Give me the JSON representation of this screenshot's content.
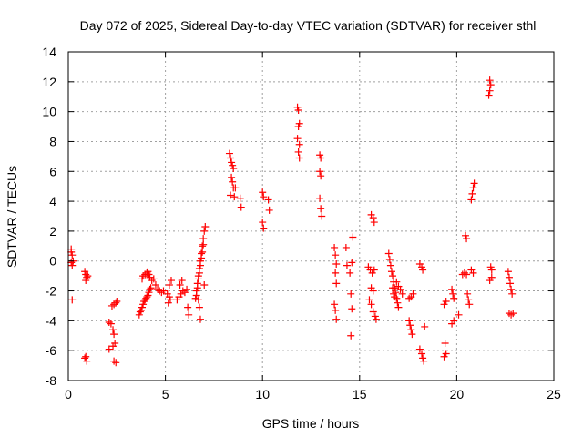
{
  "chart_data": {
    "type": "scatter",
    "title": "Day 072 of 2025, Sidereal Day-to-day VTEC variation (SDTVAR) for receiver sthl",
    "xlabel": "GPS time / hours",
    "ylabel": "SDTVAR / TECUs",
    "xlim": [
      0,
      25
    ],
    "ylim": [
      -8,
      14
    ],
    "x_ticks": [
      "0",
      "5",
      "10",
      "15",
      "20",
      "25"
    ],
    "y_ticks": [
      "-8",
      "-6",
      "-4",
      "-2",
      "0",
      "2",
      "4",
      "6",
      "8",
      "10",
      "12",
      "14"
    ],
    "grid": true,
    "marker": "plus",
    "marker_color": "#ff0000",
    "series": [
      {
        "name": "SDTVAR",
        "points": [
          [
            0.15,
            0.8
          ],
          [
            0.15,
            0.6
          ],
          [
            0.2,
            0.4
          ],
          [
            0.15,
            -0.1
          ],
          [
            0.2,
            -0.3
          ],
          [
            0.25,
            0.0
          ],
          [
            0.2,
            -2.6
          ],
          [
            0.85,
            -0.7
          ],
          [
            0.9,
            -0.9
          ],
          [
            0.95,
            -1.1
          ],
          [
            0.9,
            -1.3
          ],
          [
            1.0,
            -1.0
          ],
          [
            0.85,
            -6.5
          ],
          [
            0.95,
            -6.7
          ],
          [
            0.9,
            -6.4
          ],
          [
            2.1,
            -4.1
          ],
          [
            2.25,
            -3.0
          ],
          [
            2.2,
            -4.2
          ],
          [
            2.3,
            -4.6
          ],
          [
            2.35,
            -4.9
          ],
          [
            2.4,
            -5.5
          ],
          [
            2.3,
            -5.7
          ],
          [
            2.1,
            -5.9
          ],
          [
            2.45,
            -6.8
          ],
          [
            2.35,
            -6.7
          ],
          [
            2.45,
            -2.8
          ],
          [
            2.5,
            -2.7
          ],
          [
            2.35,
            -2.9
          ],
          [
            3.65,
            -3.6
          ],
          [
            3.7,
            -3.4
          ],
          [
            3.75,
            -3.3
          ],
          [
            3.8,
            -3.1
          ],
          [
            3.85,
            -2.9
          ],
          [
            3.9,
            -2.7
          ],
          [
            3.95,
            -2.6
          ],
          [
            4.0,
            -2.5
          ],
          [
            4.05,
            -2.4
          ],
          [
            4.1,
            -2.3
          ],
          [
            4.15,
            -2.1
          ],
          [
            4.2,
            -1.9
          ],
          [
            4.25,
            -1.8
          ],
          [
            3.8,
            -1.2
          ],
          [
            3.85,
            -1.0
          ],
          [
            3.95,
            -0.9
          ],
          [
            4.05,
            -0.8
          ],
          [
            4.1,
            -0.7
          ],
          [
            4.15,
            -0.9
          ],
          [
            4.2,
            -1.1
          ],
          [
            4.3,
            -1.3
          ],
          [
            4.4,
            -1.2
          ],
          [
            4.5,
            -1.6
          ],
          [
            4.6,
            -1.9
          ],
          [
            4.7,
            -2.0
          ],
          [
            4.8,
            -2.1
          ],
          [
            4.9,
            -2.0
          ],
          [
            5.1,
            -2.2
          ],
          [
            5.2,
            -2.4
          ],
          [
            5.25,
            -2.6
          ],
          [
            5.2,
            -1.6
          ],
          [
            5.3,
            -1.3
          ],
          [
            5.15,
            -2.8
          ],
          [
            5.6,
            -2.6
          ],
          [
            5.7,
            -2.4
          ],
          [
            5.8,
            -2.2
          ],
          [
            5.9,
            -2.0
          ],
          [
            5.75,
            -1.6
          ],
          [
            5.85,
            -1.3
          ],
          [
            6.0,
            -2.1
          ],
          [
            6.1,
            -1.9
          ],
          [
            6.2,
            -3.6
          ],
          [
            6.15,
            -3.1
          ],
          [
            6.55,
            -2.5
          ],
          [
            6.6,
            -2.0
          ],
          [
            6.65,
            -1.5
          ],
          [
            6.7,
            -1.0
          ],
          [
            6.75,
            -0.5
          ],
          [
            6.8,
            0.0
          ],
          [
            6.85,
            0.5
          ],
          [
            6.9,
            1.0
          ],
          [
            6.95,
            1.5
          ],
          [
            7.0,
            2.0
          ],
          [
            7.05,
            2.3
          ],
          [
            6.6,
            -2.3
          ],
          [
            6.65,
            -1.8
          ],
          [
            6.7,
            -1.2
          ],
          [
            6.75,
            -0.8
          ],
          [
            6.8,
            -0.3
          ],
          [
            6.85,
            0.2
          ],
          [
            6.9,
            0.6
          ],
          [
            6.95,
            1.1
          ],
          [
            7.0,
            -1.6
          ],
          [
            6.7,
            -2.6
          ],
          [
            6.75,
            -3.1
          ],
          [
            6.8,
            -3.9
          ],
          [
            8.3,
            7.2
          ],
          [
            8.35,
            6.9
          ],
          [
            8.4,
            6.6
          ],
          [
            8.45,
            6.4
          ],
          [
            8.5,
            6.2
          ],
          [
            8.4,
            5.6
          ],
          [
            8.45,
            5.3
          ],
          [
            8.5,
            4.9
          ],
          [
            8.35,
            4.4
          ],
          [
            8.55,
            4.3
          ],
          [
            8.6,
            4.9
          ],
          [
            8.85,
            4.2
          ],
          [
            8.9,
            3.6
          ],
          [
            10.0,
            4.6
          ],
          [
            10.05,
            4.3
          ],
          [
            10.0,
            2.6
          ],
          [
            10.05,
            2.2
          ],
          [
            10.3,
            4.1
          ],
          [
            10.35,
            3.4
          ],
          [
            11.8,
            10.3
          ],
          [
            11.85,
            10.1
          ],
          [
            11.9,
            9.2
          ],
          [
            11.85,
            9.0
          ],
          [
            11.8,
            8.2
          ],
          [
            11.9,
            7.8
          ],
          [
            11.85,
            7.3
          ],
          [
            11.9,
            6.9
          ],
          [
            12.95,
            7.1
          ],
          [
            13.0,
            6.9
          ],
          [
            12.95,
            6.0
          ],
          [
            13.0,
            5.7
          ],
          [
            12.95,
            4.2
          ],
          [
            13.0,
            3.5
          ],
          [
            13.05,
            3.0
          ],
          [
            13.7,
            0.9
          ],
          [
            13.75,
            0.4
          ],
          [
            13.8,
            -0.2
          ],
          [
            13.75,
            -0.8
          ],
          [
            13.8,
            -1.5
          ],
          [
            13.7,
            -2.9
          ],
          [
            13.75,
            -3.3
          ],
          [
            13.8,
            -3.9
          ],
          [
            14.3,
            0.9
          ],
          [
            14.35,
            -0.3
          ],
          [
            14.5,
            -0.8
          ],
          [
            14.6,
            -0.1
          ],
          [
            14.65,
            1.6
          ],
          [
            14.55,
            -2.2
          ],
          [
            14.6,
            -3.2
          ],
          [
            14.55,
            -5.0
          ],
          [
            15.45,
            -0.4
          ],
          [
            15.55,
            -0.6
          ],
          [
            15.65,
            -0.8
          ],
          [
            15.75,
            -0.6
          ],
          [
            15.5,
            -2.6
          ],
          [
            15.6,
            -2.9
          ],
          [
            15.7,
            -3.4
          ],
          [
            15.8,
            -3.7
          ],
          [
            15.85,
            -3.9
          ],
          [
            15.6,
            -1.8
          ],
          [
            15.7,
            -2.0
          ],
          [
            15.6,
            3.1
          ],
          [
            15.7,
            2.9
          ],
          [
            15.75,
            2.6
          ],
          [
            16.5,
            0.5
          ],
          [
            16.55,
            0.1
          ],
          [
            16.6,
            -0.3
          ],
          [
            16.65,
            -0.7
          ],
          [
            16.7,
            -1.0
          ],
          [
            16.75,
            -1.4
          ],
          [
            16.8,
            -1.8
          ],
          [
            16.85,
            -2.1
          ],
          [
            16.9,
            -2.5
          ],
          [
            16.95,
            -2.8
          ],
          [
            17.0,
            -3.1
          ],
          [
            16.7,
            -1.8
          ],
          [
            16.75,
            -2.2
          ],
          [
            16.8,
            -2.4
          ],
          [
            16.9,
            -1.4
          ],
          [
            17.0,
            -1.7
          ],
          [
            17.1,
            -1.9
          ],
          [
            17.2,
            -2.2
          ],
          [
            17.55,
            -4.0
          ],
          [
            17.6,
            -4.3
          ],
          [
            17.65,
            -4.6
          ],
          [
            17.7,
            -4.9
          ],
          [
            17.55,
            -2.5
          ],
          [
            17.65,
            -2.4
          ],
          [
            17.75,
            -2.2
          ],
          [
            18.1,
            -0.2
          ],
          [
            18.2,
            -0.4
          ],
          [
            18.25,
            -0.6
          ],
          [
            18.1,
            -5.9
          ],
          [
            18.2,
            -6.2
          ],
          [
            18.25,
            -6.5
          ],
          [
            18.3,
            -6.7
          ],
          [
            18.35,
            -4.4
          ],
          [
            19.4,
            -5.5
          ],
          [
            19.45,
            -6.2
          ],
          [
            19.35,
            -6.4
          ],
          [
            19.35,
            -2.9
          ],
          [
            19.45,
            -2.7
          ],
          [
            19.75,
            -1.9
          ],
          [
            19.8,
            -2.2
          ],
          [
            19.85,
            -2.5
          ],
          [
            19.75,
            -4.2
          ],
          [
            19.85,
            -4.0
          ],
          [
            20.1,
            -3.6
          ],
          [
            20.3,
            -0.9
          ],
          [
            20.4,
            -0.8
          ],
          [
            20.5,
            -0.9
          ],
          [
            20.55,
            -2.2
          ],
          [
            20.6,
            -2.6
          ],
          [
            20.65,
            -2.9
          ],
          [
            20.45,
            1.7
          ],
          [
            20.5,
            1.5
          ],
          [
            20.75,
            4.1
          ],
          [
            20.8,
            4.5
          ],
          [
            20.85,
            4.9
          ],
          [
            20.9,
            5.2
          ],
          [
            20.75,
            -0.6
          ],
          [
            20.85,
            -0.8
          ],
          [
            21.7,
            12.1
          ],
          [
            21.75,
            11.8
          ],
          [
            21.7,
            11.4
          ],
          [
            21.65,
            11.1
          ],
          [
            21.75,
            -0.4
          ],
          [
            21.8,
            -0.6
          ],
          [
            21.7,
            -1.3
          ],
          [
            21.8,
            -1.1
          ],
          [
            22.65,
            -0.7
          ],
          [
            22.7,
            -1.1
          ],
          [
            22.75,
            -1.5
          ],
          [
            22.8,
            -1.9
          ],
          [
            22.85,
            -2.2
          ],
          [
            22.7,
            -3.5
          ],
          [
            22.8,
            -3.6
          ],
          [
            22.9,
            -3.5
          ]
        ]
      }
    ]
  }
}
